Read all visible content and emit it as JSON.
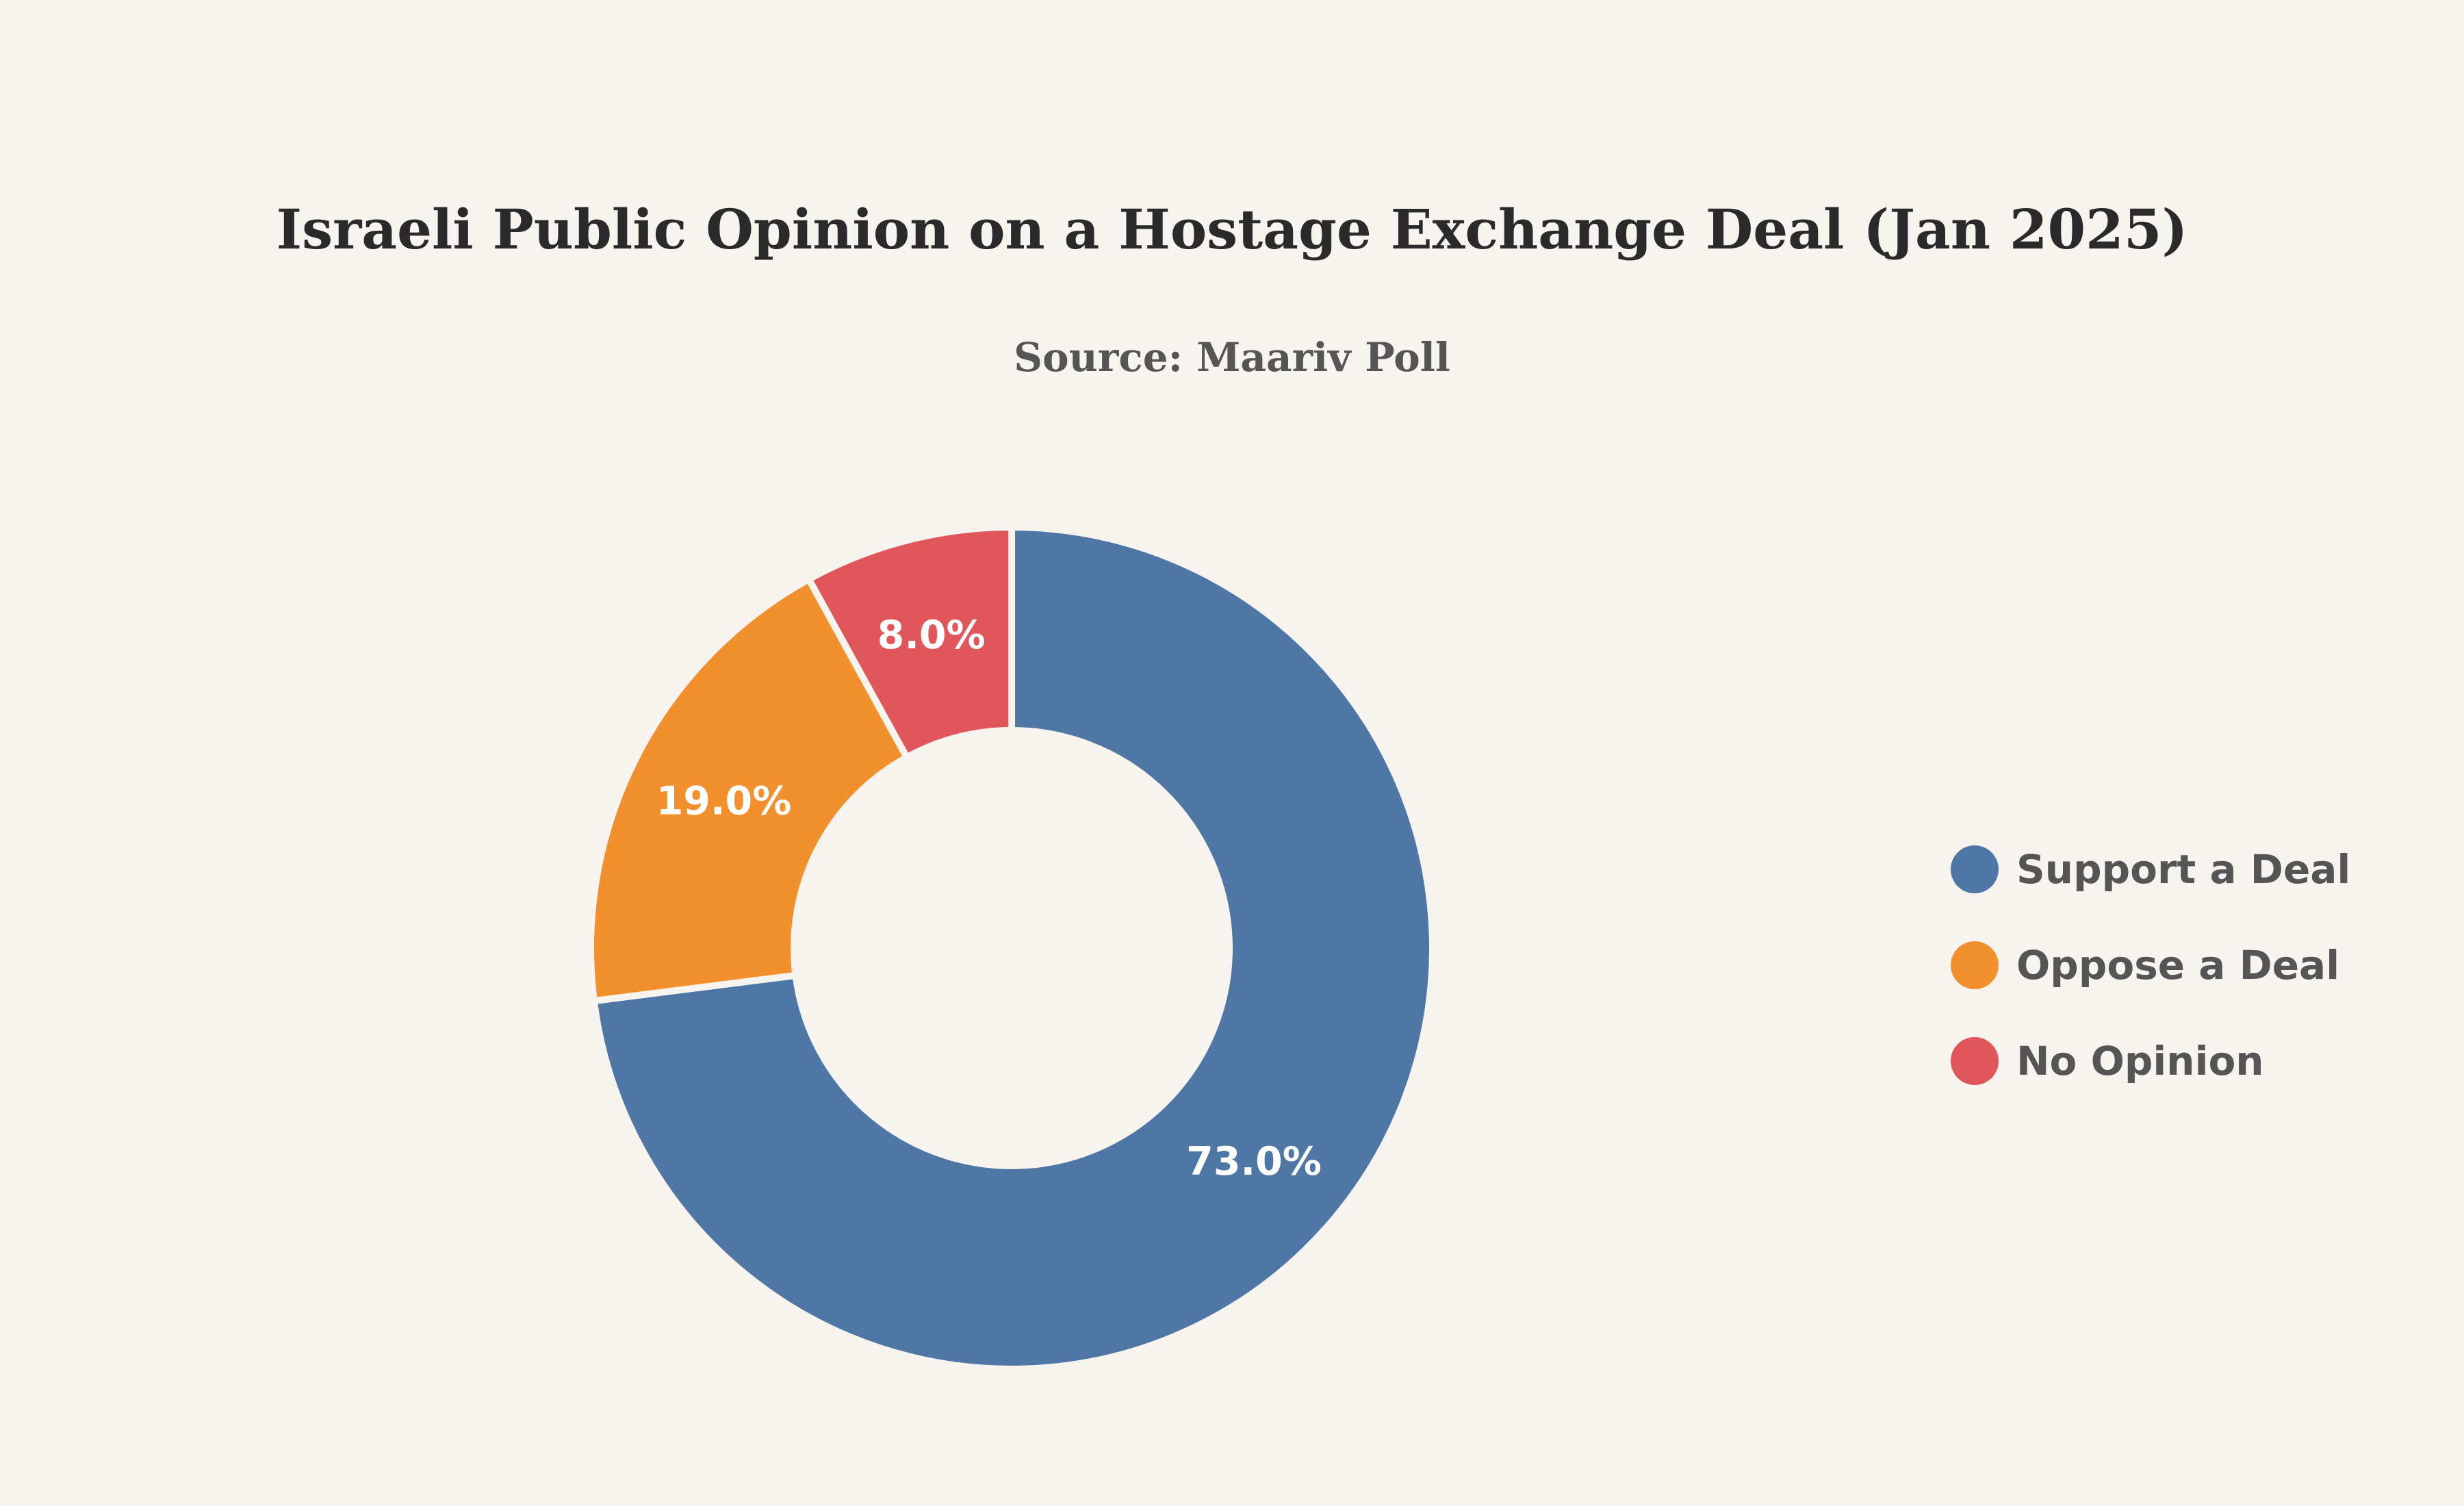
{
  "chart_data": {
    "type": "pie",
    "title": "Israeli Public Opinion on a Hostage Exchange Deal (Jan 2025)",
    "subtitle": "Source: Maariv Poll",
    "hole": true,
    "categories": [
      "Support a Deal",
      "Oppose a Deal",
      "No Opinion"
    ],
    "values": [
      73.0,
      19.0,
      8.0
    ],
    "labels": [
      "73.0%",
      "19.0%",
      "8.0%"
    ],
    "colors": [
      "#4e77a5",
      "#f2902d",
      "#e0565b"
    ],
    "label_color": "#ffffff",
    "separator_color": "#f7f4ef",
    "direction": "clockwise",
    "start": "top",
    "legend": "right"
  }
}
